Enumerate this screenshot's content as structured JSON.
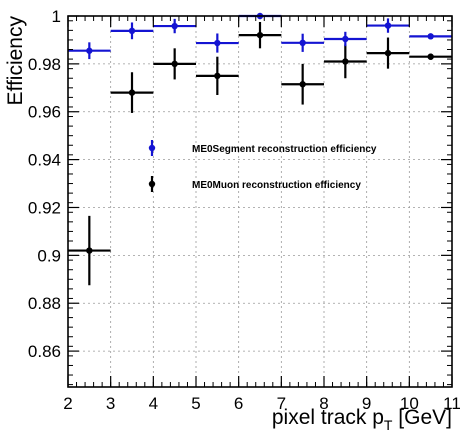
{
  "chart_data": {
    "type": "scatter",
    "xlabel": "pixel track p",
    "xlabel_sub": "T",
    "xlabel_unit": " [GeV]",
    "ylabel": "Efficiency",
    "xlim": [
      2,
      11
    ],
    "ylim": [
      0.845,
      1.0
    ],
    "x_ticks": [
      2,
      3,
      4,
      5,
      6,
      7,
      8,
      9,
      10,
      11
    ],
    "x_tick_labels": [
      "2",
      "3",
      "4",
      "5",
      "6",
      "7",
      "8",
      "9",
      "10",
      "11"
    ],
    "y_ticks": [
      0.86,
      0.88,
      0.9,
      0.92,
      0.94,
      0.96,
      0.98,
      1.0
    ],
    "y_tick_labels": [
      "0.86",
      "0.88",
      "0.9",
      "0.92",
      "0.94",
      "0.96",
      "0.98",
      "1"
    ],
    "grid": true,
    "legend_position": "center-right",
    "series": [
      {
        "name": "ME0Segment reconstruction efficiency",
        "color": "#1414d2",
        "x": [
          2.5,
          3.5,
          4.5,
          5.5,
          6.5,
          7.5,
          8.5,
          9.5,
          10.5
        ],
        "y": [
          0.9855,
          0.9938,
          0.9958,
          0.9887,
          1.0,
          0.9888,
          0.9904,
          0.996,
          0.9915
        ],
        "yerr": [
          0.0035,
          0.0035,
          0.003,
          0.004,
          0.0013,
          0.0038,
          0.003,
          0.003,
          0.001
        ]
      },
      {
        "name": "ME0Muon reconstruction efficiency",
        "color": "#000000",
        "x": [
          2.5,
          3.5,
          4.5,
          5.5,
          6.5,
          7.5,
          8.5,
          9.5,
          10.5
        ],
        "y": [
          0.902,
          0.968,
          0.98,
          0.975,
          0.992,
          0.9715,
          0.981,
          0.9845,
          0.983
        ],
        "yerr": [
          0.0145,
          0.0085,
          0.0065,
          0.008,
          0.0055,
          0.0085,
          0.007,
          0.0065,
          0.0013
        ]
      }
    ]
  }
}
